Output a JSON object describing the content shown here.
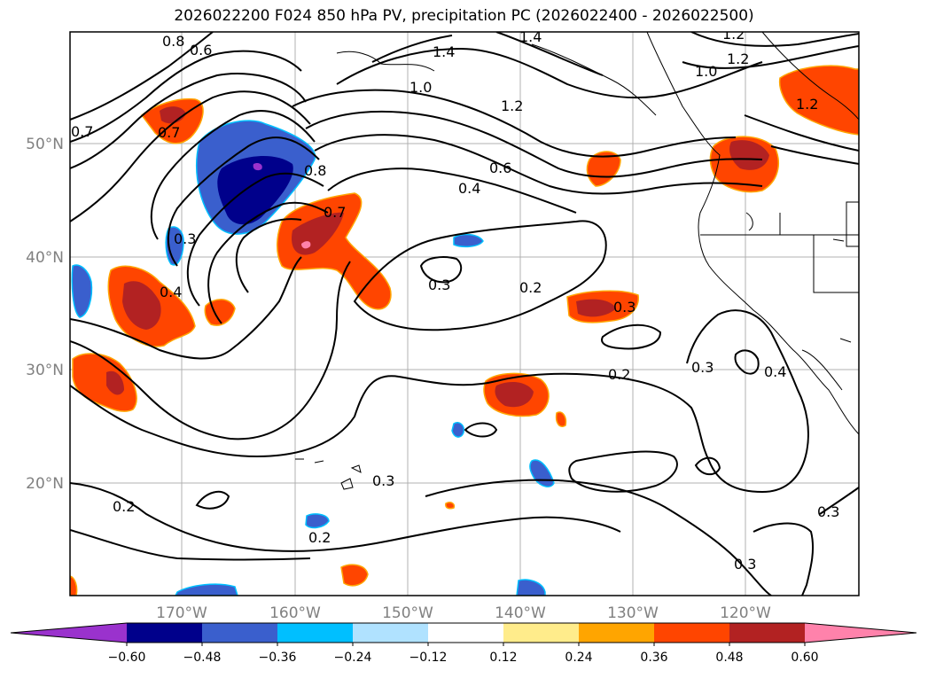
{
  "title": "2026022200 F024 850 hPa PV, precipitation PC (2026022400 - 2026022500)",
  "lat_labels": [
    "50°N",
    "40°N",
    "30°N",
    "20°N"
  ],
  "lon_labels": [
    "170°W",
    "160°W",
    "150°W",
    "140°W",
    "130°W",
    "120°W"
  ],
  "contour_labels": [
    "0.8",
    "0.6",
    "1.4",
    "1.4",
    "1.2",
    "1.0",
    "1.2",
    "1.0",
    "1.2",
    "0.7",
    "0.7",
    "1.2",
    "0.8",
    "0.6",
    "0.4",
    "0.3",
    "0.7",
    "0.4",
    "0.3",
    "0.2",
    "0.3",
    "0.2",
    "0.3",
    "0.4",
    "0.3",
    "0.2",
    "0.2",
    "0.3",
    "0.3"
  ],
  "colorbar": {
    "ticks": [
      "−0.60",
      "−0.48",
      "−0.36",
      "−0.24",
      "−0.12",
      "0.12",
      "0.24",
      "0.36",
      "0.48",
      "0.60"
    ],
    "colors": [
      "#9a32cd",
      "#00008b",
      "#3a5fcd",
      "#00bfff",
      "#b0e2ff",
      "#ffffff",
      "#ffec8b",
      "#ffa500",
      "#ff4500",
      "#b22222",
      "#ff82ab"
    ]
  },
  "colors": {
    "contour": "#000000",
    "grid": "#b0b0b0",
    "axis_label": "#808080"
  }
}
